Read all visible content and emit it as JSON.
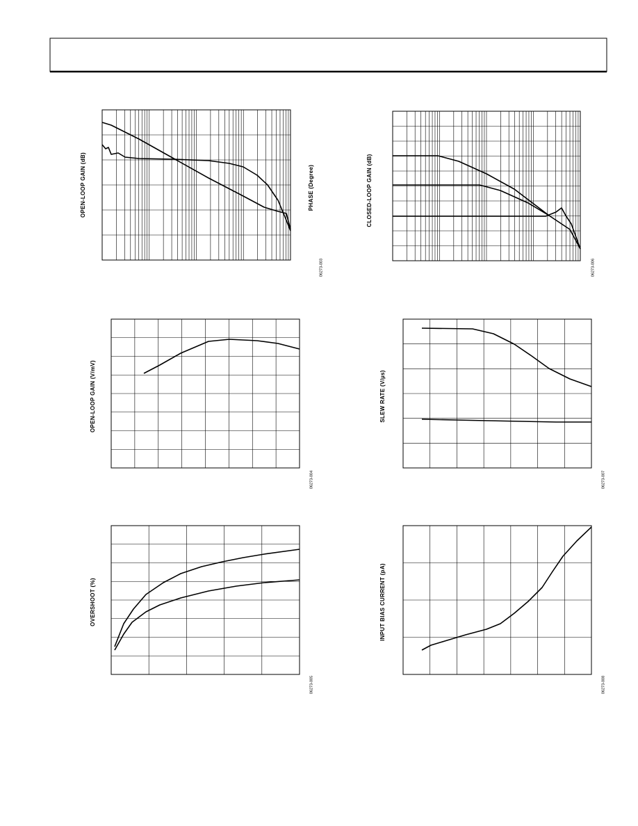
{
  "figures": [
    {
      "y_label": "OPEN-LOOP GAIN (dB)",
      "y2_label": "PHASE (Degree)",
      "code": "06273-003"
    },
    {
      "y_label": "CLOSED-LOOP GAIN (dB)",
      "code": "06273-006"
    },
    {
      "y_label": "OPEN-LOOP GAIN (V/mV)",
      "code": "06273-004"
    },
    {
      "y_label": "SLEW RATE (V/µs)",
      "code": "06273-007"
    },
    {
      "y_label": "OVERSHOOT (%)",
      "code": "06273-005"
    },
    {
      "y_label": "INPUT BIAS CURRENT (pA)",
      "code": "06273-008"
    }
  ]
}
